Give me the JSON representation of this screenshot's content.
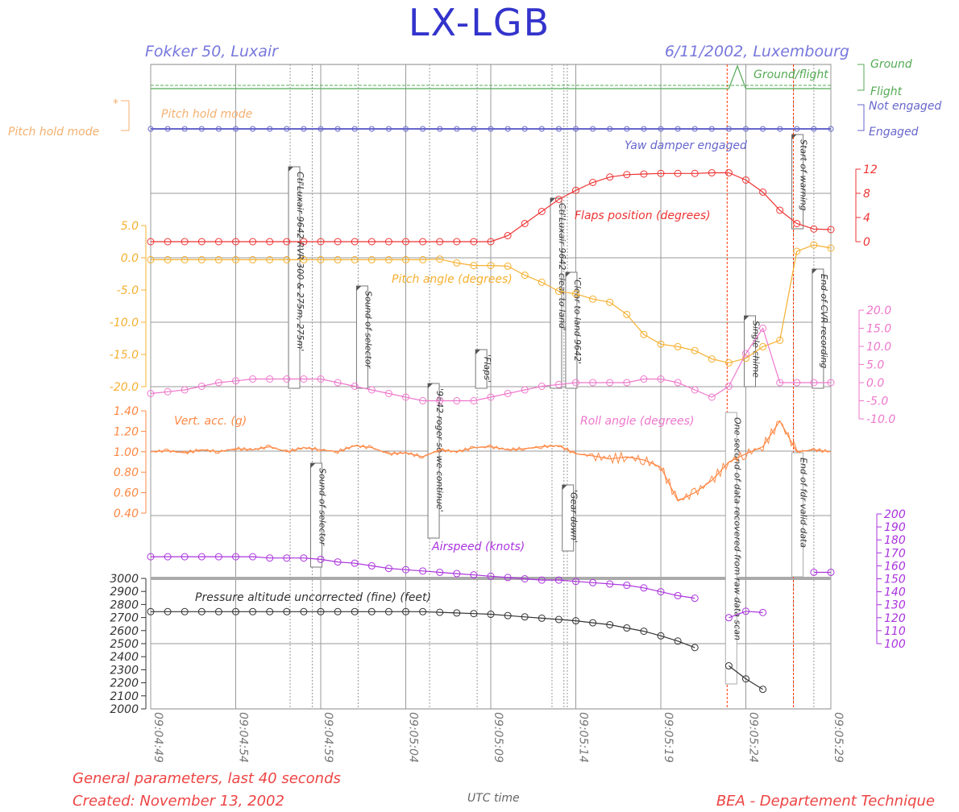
{
  "chart_data": {
    "type": "line",
    "title": "LX-LGB",
    "subtitle_left": "Fokker 50, Luxair",
    "subtitle_right": "6/11/2002, Luxembourg",
    "xlabel": "UTC time",
    "footer_left_1": "General parameters, last 40 seconds",
    "footer_left_2": "Created: November 13, 2002",
    "footer_right": "BEA - Departement Technique",
    "grid": true,
    "x_ticks": [
      "09:04:49",
      "09:04:54",
      "09:04:59",
      "09:05:04",
      "09:05:09",
      "09:05:14",
      "09:05:19",
      "09:05:24",
      "09:05:29"
    ],
    "x_range_seconds": [
      0,
      40
    ],
    "colors": {
      "title": "#3333cc",
      "header": "#7777dd",
      "ground_flight": "#55aa55",
      "yaw": "#6666cc",
      "pitch_hold": "#f5b070",
      "flaps": "#ee3333",
      "pitch": "#f5b030",
      "roll": "#ee77cc",
      "vert_acc": "#ff8844",
      "airspeed": "#aa33dd",
      "altitude": "#333333",
      "footer": "#ee4444",
      "marker": "#ff3300"
    },
    "discrete_labels": {
      "ground": "Ground",
      "flight": "Flight",
      "ground_flight": "Ground/flight",
      "not_engaged": "Not engaged",
      "engaged": "Engaged",
      "yaw_damper": "Yaw damper engaged",
      "pitch_hold": "Pitch hold mode",
      "pitch_hold_star": "*"
    },
    "axes": {
      "flaps": {
        "label": "Flaps position (degrees)",
        "range": [
          0,
          12
        ],
        "ticks": [
          "12",
          "8",
          "4",
          "0"
        ]
      },
      "pitch": {
        "label": "Pitch angle (degrees)",
        "range": [
          -20,
          5
        ],
        "ticks": [
          "5.0",
          "0.0",
          "-5.0",
          "-10.0",
          "-15.0",
          "-20.0"
        ]
      },
      "roll": {
        "label": "Roll angle (degrees)",
        "range": [
          -10,
          20
        ],
        "ticks": [
          "20.0",
          "15.0",
          "10.0",
          "5.0",
          "0.0",
          "-5.0",
          "-10.0"
        ]
      },
      "vert_acc": {
        "label": "Vert. acc.  (g)",
        "range": [
          0.4,
          1.4
        ],
        "ticks": [
          "1.40",
          "1.20",
          "1.00",
          "0.80",
          "0.60",
          "0.40"
        ]
      },
      "airspeed": {
        "label": "Airspeed (knots)",
        "range": [
          100,
          200
        ],
        "ticks": [
          "200",
          "190",
          "180",
          "170",
          "160",
          "150",
          "140",
          "130",
          "120",
          "110",
          "100"
        ]
      },
      "altitude": {
        "label": "Pressure altitude uncorrected (fine) (feet)",
        "range": [
          2000,
          3000
        ],
        "ticks": [
          "3000",
          "2900",
          "2800",
          "2700",
          "2600",
          "2500",
          "2400",
          "2300",
          "2200",
          "2100",
          "2000"
        ]
      }
    },
    "series": [
      {
        "name": "Flaps position (degrees)",
        "x": [
          0,
          1,
          2,
          3,
          4,
          5,
          6,
          7,
          8,
          9,
          10,
          11,
          12,
          13,
          14,
          15,
          16,
          17,
          18,
          19,
          20,
          21,
          22,
          23,
          24,
          25,
          26,
          27,
          28,
          29,
          30,
          31,
          32,
          33,
          34,
          35,
          36,
          37,
          38,
          39,
          40
        ],
        "y": [
          0,
          0,
          0,
          0,
          0,
          0,
          0,
          0,
          0,
          0,
          0,
          0,
          0,
          0,
          0,
          0,
          0,
          0,
          0,
          0,
          0,
          1,
          3,
          5,
          7,
          8.5,
          9.8,
          10.7,
          11.1,
          11.2,
          11.3,
          11.3,
          11.3,
          11.4,
          11.4,
          10.2,
          8.2,
          5.2,
          3,
          2.1,
          2
        ]
      },
      {
        "name": "Pitch angle (degrees)",
        "x": [
          0,
          1,
          2,
          3,
          4,
          5,
          6,
          7,
          8,
          9,
          10,
          11,
          12,
          13,
          14,
          15,
          16,
          17,
          18,
          19,
          20,
          21,
          22,
          23,
          24,
          25,
          26,
          27,
          28,
          29,
          30,
          31,
          32,
          33,
          34,
          35,
          36,
          37,
          38,
          39,
          40
        ],
        "y": [
          -0.3,
          -0.3,
          -0.3,
          -0.3,
          -0.3,
          -0.3,
          -0.3,
          -0.3,
          -0.3,
          -0.3,
          -0.3,
          -0.3,
          -0.3,
          -0.3,
          -0.3,
          -0.3,
          -0.3,
          -0.2,
          -0.8,
          -1.2,
          -1.2,
          -1.3,
          -2.7,
          -3.8,
          -5.2,
          -5.6,
          -6.4,
          -6.9,
          -8.8,
          -11.9,
          -13.4,
          -13.8,
          -14.4,
          -15.7,
          -16.3,
          -15.6,
          -13.8,
          -12.8,
          1.0,
          2.0,
          1.5
        ]
      },
      {
        "name": "Roll angle (degrees)",
        "x": [
          0,
          1,
          2,
          3,
          4,
          5,
          6,
          7,
          8,
          9,
          10,
          11,
          12,
          13,
          14,
          15,
          16,
          17,
          18,
          19,
          20,
          21,
          22,
          23,
          24,
          25,
          26,
          27,
          28,
          29,
          30,
          31,
          32,
          33,
          34,
          35,
          36,
          37,
          38,
          39,
          40
        ],
        "y": [
          -3,
          -2.5,
          -2,
          -1,
          0,
          0.5,
          1,
          1,
          1,
          1,
          1,
          0,
          -1,
          -2,
          -3,
          -4,
          -5,
          -5,
          -5,
          -5,
          -4,
          -3,
          -2,
          -1,
          -0.5,
          0,
          0,
          0,
          0,
          1,
          1,
          0,
          -2,
          -4,
          -1,
          8,
          15,
          0,
          0,
          0,
          0
        ]
      },
      {
        "name": "Airspeed (knots)",
        "x": [
          0,
          1,
          2,
          3,
          4,
          5,
          6,
          7,
          8,
          9,
          10,
          11,
          12,
          13,
          14,
          15,
          16,
          17,
          18,
          19,
          20,
          21,
          22,
          23,
          24,
          25,
          26,
          27,
          28,
          29,
          30,
          31,
          32,
          33,
          34,
          35,
          36,
          37,
          38,
          39,
          40
        ],
        "y": [
          167,
          167,
          167,
          167,
          167,
          167,
          167,
          166,
          166,
          166,
          165,
          163,
          162,
          160,
          158,
          157,
          156,
          155,
          154,
          153,
          152,
          151,
          150,
          149,
          149,
          148,
          147,
          146,
          145,
          143,
          140,
          137,
          135,
          null,
          120,
          125,
          124,
          null,
          null,
          155,
          155
        ]
      },
      {
        "name": "Pressure altitude uncorrected (fine) (feet)",
        "x": [
          0,
          1,
          2,
          3,
          4,
          5,
          6,
          7,
          8,
          9,
          10,
          11,
          12,
          13,
          14,
          15,
          16,
          17,
          18,
          19,
          20,
          21,
          22,
          23,
          24,
          25,
          26,
          27,
          28,
          29,
          30,
          31,
          32,
          33,
          34,
          35,
          36,
          37,
          38,
          39,
          40
        ],
        "y": [
          2745,
          2745,
          2745,
          2745,
          2745,
          2745,
          2745,
          2745,
          2745,
          2745,
          2745,
          2745,
          2745,
          2745,
          2745,
          2745,
          2745,
          2740,
          2735,
          2730,
          2725,
          2715,
          2705,
          2695,
          2685,
          2675,
          2660,
          2645,
          2620,
          2595,
          2560,
          2520,
          2470,
          null,
          2330,
          2230,
          2150,
          null,
          null,
          null,
          null
        ]
      },
      {
        "name": "Vert. acc.  (g)",
        "x": [
          0,
          1,
          2,
          3,
          4,
          5,
          6,
          7,
          8,
          9,
          10,
          11,
          12,
          13,
          14,
          15,
          16,
          17,
          18,
          19,
          20,
          21,
          22,
          23,
          24,
          25,
          26,
          27,
          28,
          29,
          30,
          31,
          32,
          33,
          34,
          35,
          36,
          37,
          38,
          39,
          40
        ],
        "y": [
          1.0,
          1.01,
          0.99,
          1.02,
          1.0,
          1.03,
          1.02,
          1.05,
          1.0,
          1.04,
          1.02,
          1.0,
          1.06,
          1.04,
          0.98,
          0.99,
          0.95,
          1.02,
          1.0,
          1.04,
          1.05,
          1.02,
          1.03,
          1.05,
          1.06,
          0.98,
          0.96,
          0.93,
          0.95,
          0.92,
          0.85,
          0.52,
          0.6,
          0.72,
          0.9,
          0.98,
          1.05,
          1.3,
          1.0,
          1.02,
          1.0
        ]
      },
      {
        "name": "Ground/flight",
        "x": [
          0,
          34,
          34.5,
          35,
          40
        ],
        "y": [
          0,
          0,
          1,
          0,
          0
        ]
      },
      {
        "name": "Yaw damper engaged",
        "x": [
          0,
          40
        ],
        "y": [
          0,
          0
        ]
      }
    ],
    "events": [
      {
        "t": 8.2,
        "text": "Ctl'Luxair 9642 RVR 300 & 275m, 275m'"
      },
      {
        "t": 12.2,
        "text": "Sound of selector"
      },
      {
        "t": 16.4,
        "text": "'9642 roger so we continue'"
      },
      {
        "t": 19.2,
        "text": "'Flaps'"
      },
      {
        "t": 23.6,
        "text": "Ctl'Luxair 9642 clear to land'"
      },
      {
        "t": 24.5,
        "text": "'Clear to land 9642'"
      },
      {
        "t": 24.3,
        "text": "'Gear down'"
      },
      {
        "t": 9.5,
        "text": "Sound of selector"
      },
      {
        "t": 35.0,
        "text": "Single chime"
      },
      {
        "t": 37.8,
        "text": "Start of warning"
      },
      {
        "t": 39.0,
        "text": "End of CVR recording"
      },
      {
        "t": 33.9,
        "text": "One second of data recovered from raw data scan"
      },
      {
        "t": 37.8,
        "text": "End of fdr valid data"
      }
    ]
  }
}
